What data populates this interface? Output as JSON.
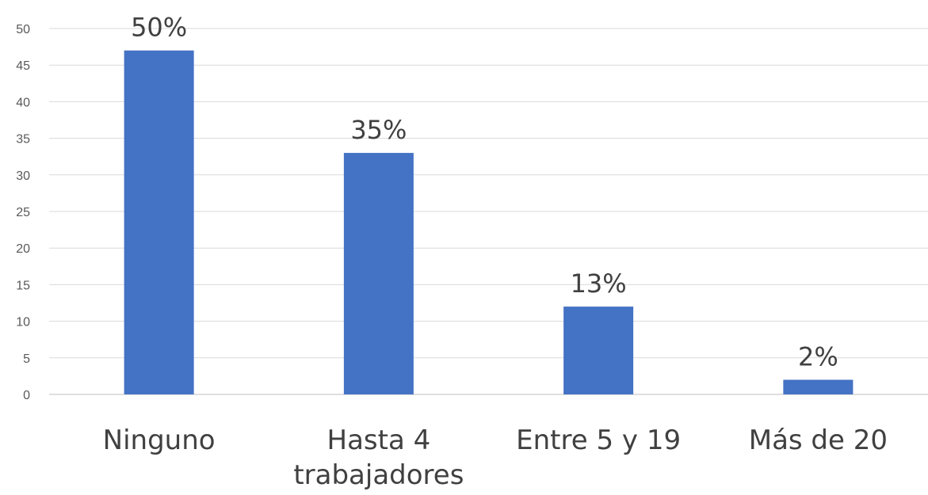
{
  "chart_data": {
    "type": "bar",
    "categories": [
      "Ninguno",
      "Hasta 4 trabajadores",
      "Entre 5 y 19",
      "Más de 20"
    ],
    "category_lines": [
      [
        "Ninguno"
      ],
      [
        "Hasta 4",
        "trabajadores"
      ],
      [
        "Entre 5 y 19"
      ],
      [
        "Más de 20"
      ]
    ],
    "values": [
      47,
      33,
      12,
      2
    ],
    "data_labels": [
      "50%",
      "35%",
      "13%",
      "2%"
    ],
    "ylim": [
      0,
      50
    ],
    "yticks": [
      0,
      5,
      10,
      15,
      20,
      25,
      30,
      35,
      40,
      45,
      50
    ],
    "grid": true,
    "bar_color": "#4472c4"
  }
}
